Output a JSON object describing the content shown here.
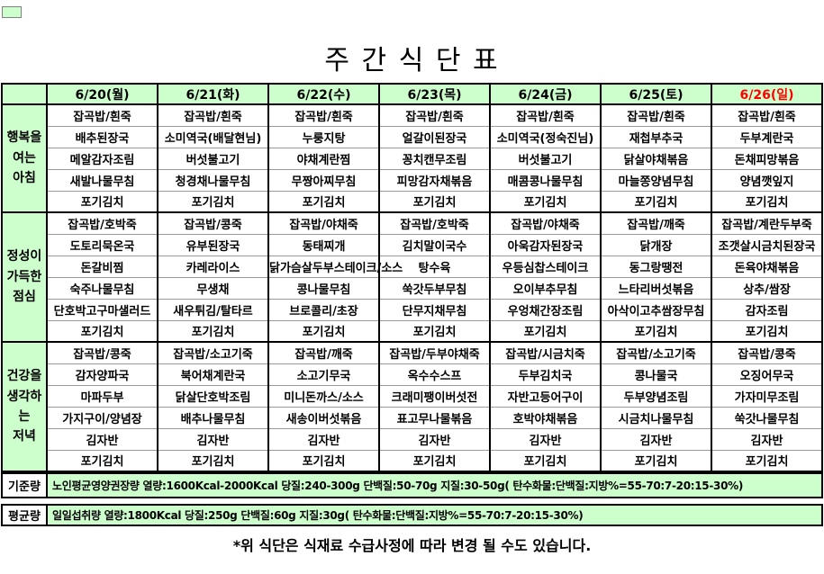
{
  "title": "주 간 식 단 표",
  "days": [
    "6/20(월)",
    "6/21(화)",
    "6/22(수)",
    "6/23(목)",
    "6/24(금)",
    "6/25(토)",
    "6/26(일)"
  ],
  "meals": [
    {
      "label": "행복을\n여는\n아침",
      "menus": [
        [
          "잡곡밥/흰죽",
          "배추된장국",
          "메알감자조림",
          "새발나물무침",
          "포기김치"
        ],
        [
          "잡곡밥/흰죽",
          "소미역국(배달현님)",
          "버섯불고기",
          "청경채나물무침",
          "포기김치"
        ],
        [
          "잡곡밥/흰죽",
          "누룽지탕",
          "야채계란찜",
          "무짱아찌무침",
          "포기김치"
        ],
        [
          "잡곡밥/흰죽",
          "얼갈이된장국",
          "꽁치캔무조림",
          "피망감자채볶음",
          "포기김치"
        ],
        [
          "잡곡밥/흰죽",
          "소미역국(정숙진님)",
          "버섯불고기",
          "매콤콩나물무침",
          "포기김치"
        ],
        [
          "잡곡밥/흰죽",
          "재첩부추국",
          "닭살야채볶음",
          "마늘쫑양념무침",
          "포기김치"
        ],
        [
          "잡곡밥/흰죽",
          "두부계란국",
          "돈채피망볶음",
          "양념깻잎지",
          "포기김치"
        ]
      ]
    },
    {
      "label": "정성이\n가득한\n점심",
      "menus": [
        [
          "잡곡밥/호박죽",
          "도토리묵온국",
          "돈갈비찜",
          "숙주나물무침",
          "단호박고구마샐러드",
          "포기김치"
        ],
        [
          "잡곡밥/콩죽",
          "유부된장국",
          "카레라이스",
          "무생채",
          "새우튀김/탈타르",
          "포기김치"
        ],
        [
          "잡곡밥/야채죽",
          "동태찌개",
          "닭가슴살두부스테이크/소스",
          "콩나물무침",
          "브로콜리/초장",
          "포기김치"
        ],
        [
          "잡곡밥/호박죽",
          "김치말이국수",
          "탕수육",
          "쑥갓두부무침",
          "단무지채무침",
          "포기김치"
        ],
        [
          "잡곡밥/야채죽",
          "아욱감자된장국",
          "우등심찹스테이크",
          "오이부추무침",
          "우엉채간장조림",
          "포기김치"
        ],
        [
          "잡곡밥/깨죽",
          "닭개장",
          "동그랑땡전",
          "느타리버섯볶음",
          "아삭이고추쌈장무침",
          "포기김치"
        ],
        [
          "잡곡밥/계란두부죽",
          "조갯살시금치된장국",
          "돈육야채볶음",
          "상추/쌈장",
          "감자조림",
          "포기김치"
        ]
      ]
    },
    {
      "label": "건강을\n생각하는\n저녁",
      "menus": [
        [
          "잡곡밥/콩죽",
          "감자양파국",
          "마파두부",
          "가지구이/양념장",
          "김자반",
          "포기김치"
        ],
        [
          "잡곡밥/소고기죽",
          "북어채계란국",
          "닭살단호박조림",
          "배추나물무침",
          "김자반",
          "포기김치"
        ],
        [
          "잡곡밥/깨죽",
          "소고기무국",
          "미니돈까스/소스",
          "새송이버섯볶음",
          "김자반",
          "포기김치"
        ],
        [
          "잡곡밥/두부야채죽",
          "옥수수스프",
          "크래미팽이버섯전",
          "표고무나물볶음",
          "김자반",
          "포기김치"
        ],
        [
          "잡곡밥/시금치죽",
          "두부김치국",
          "자반고등어구이",
          "호박야채볶음",
          "김자반",
          "포기김치"
        ],
        [
          "잡곡밥/소고기죽",
          "콩나물국",
          "두부양념조림",
          "시금치나물무침",
          "김자반",
          "포기김치"
        ],
        [
          "잡곡밥/콩죽",
          "오징어무국",
          "가자미무조림",
          "쑥갓나물무침",
          "김자반",
          "포기김치"
        ]
      ]
    }
  ],
  "footer_rows": [
    {
      "label": "기준량",
      "text": "노인평균영양권장량 열량:1600Kcal-2000Kcal 당질:240-300g 단백질:50-70g 지질:30-50g( 탄수화물:단백질:지방%=55-70:7-20:15-30%)"
    },
    {
      "label": "평균량",
      "text": "일일섭취량 열량:1800Kcal 당질:250g 단백질:60g 지질:30g( 탄수화물:단백질:지방%=55-70:7-20:15-30%)"
    }
  ],
  "footnote": "*위 식단은 식재료 수급사정에 따라 변경 될 수도 있습니다.",
  "colors": {
    "table_green": "#ccffcc",
    "sunday_red": "#ff0000",
    "grid_black": "#000000"
  }
}
